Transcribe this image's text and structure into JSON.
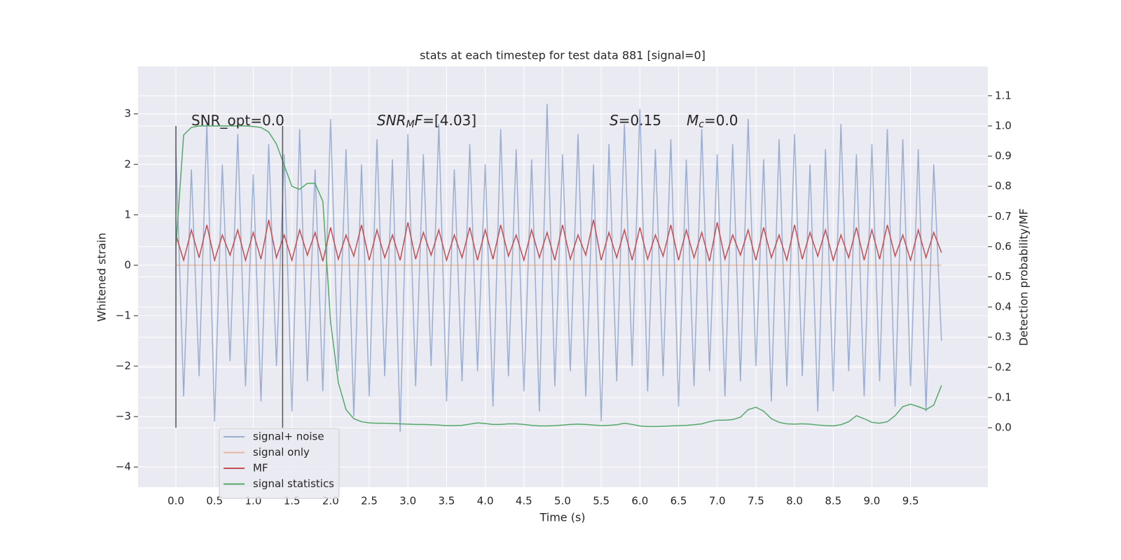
{
  "chart_data": {
    "type": "line",
    "title": "stats at each timestep for test data 881 [signal=0]",
    "xlabel": "Time (s)",
    "ylabel": "Whitened strain",
    "y2label": "Detection probability/MF",
    "grid": true,
    "legend_loc": "lower left",
    "xlim": [
      -0.49,
      10.5
    ],
    "ylim": [
      -4.4,
      3.94
    ],
    "y2lim": [
      -0.197,
      1.197
    ],
    "xticks": [
      {
        "value": 0,
        "label": "0.0"
      },
      {
        "value": 0.5,
        "label": "0.5"
      },
      {
        "value": 1,
        "label": "1.0"
      },
      {
        "value": 1.5,
        "label": "1.5"
      },
      {
        "value": 2,
        "label": "2.0"
      },
      {
        "value": 2.5,
        "label": "2.5"
      },
      {
        "value": 3,
        "label": "3.0"
      },
      {
        "value": 3.5,
        "label": "3.5"
      },
      {
        "value": 4,
        "label": "4.0"
      },
      {
        "value": 4.5,
        "label": "4.5"
      },
      {
        "value": 5,
        "label": "5.0"
      },
      {
        "value": 5.5,
        "label": "5.5"
      },
      {
        "value": 6,
        "label": "6.0"
      },
      {
        "value": 6.5,
        "label": "6.5"
      },
      {
        "value": 7,
        "label": "7.0"
      },
      {
        "value": 7.5,
        "label": "7.5"
      },
      {
        "value": 8,
        "label": "8.0"
      },
      {
        "value": 8.5,
        "label": "8.5"
      },
      {
        "value": 9,
        "label": "9.0"
      },
      {
        "value": 9.5,
        "label": "9.5"
      }
    ],
    "yticks": [
      {
        "value": -4,
        "label": "−4"
      },
      {
        "value": -3,
        "label": "−3"
      },
      {
        "value": -2,
        "label": "−2"
      },
      {
        "value": -1,
        "label": "−1"
      },
      0,
      1,
      2,
      3
    ],
    "y2ticks": [
      {
        "value": 0,
        "label": "0.0"
      },
      {
        "value": 0.1,
        "label": "0.1"
      },
      {
        "value": 0.2,
        "label": "0.2"
      },
      {
        "value": 0.3,
        "label": "0.3"
      },
      {
        "value": 0.4,
        "label": "0.4"
      },
      {
        "value": 0.5,
        "label": "0.5"
      },
      {
        "value": 0.6,
        "label": "0.6"
      },
      {
        "value": 0.7,
        "label": "0.7"
      },
      {
        "value": 0.8,
        "label": "0.8"
      },
      {
        "value": 0.9,
        "label": "0.9"
      },
      {
        "value": 1,
        "label": "1.0"
      },
      {
        "value": 1.1,
        "label": "1.1"
      }
    ],
    "annotations": [
      [
        {
          "t": "SNR_opt=0.0"
        }
      ],
      [
        {
          "t": "SNR",
          "i": true
        },
        {
          "t": "M",
          "i": true,
          "sub": true
        },
        {
          "t": "F",
          "i": true
        },
        {
          "t": "=[4.03]"
        }
      ],
      [
        {
          "t": "S",
          "i": true
        },
        {
          "t": "=0.15"
        }
      ],
      [
        {
          "t": "M",
          "i": true
        },
        {
          "t": "c",
          "i": true,
          "sub": true
        },
        {
          "t": "=0.0"
        }
      ]
    ],
    "vlines": [
      {
        "x": 0,
        "y2": [
          0,
          1
        ]
      },
      {
        "x": 1.38,
        "y2": [
          0,
          1
        ]
      }
    ],
    "x": [
      0.0,
      0.1,
      0.2,
      0.3,
      0.4,
      0.5,
      0.6,
      0.7,
      0.8,
      0.9,
      1.0,
      1.1,
      1.2,
      1.3,
      1.4,
      1.5,
      1.6,
      1.7,
      1.8,
      1.9,
      2.0,
      2.1,
      2.2,
      2.3,
      2.4,
      2.5,
      2.6,
      2.7,
      2.8,
      2.9,
      3.0,
      3.1,
      3.2,
      3.3,
      3.4,
      3.5,
      3.6,
      3.7,
      3.8,
      3.9,
      4.0,
      4.1,
      4.2,
      4.3,
      4.4,
      4.5,
      4.6,
      4.7,
      4.8,
      4.9,
      5.0,
      5.1,
      5.2,
      5.3,
      5.4,
      5.5,
      5.6,
      5.7,
      5.8,
      5.9,
      6.0,
      6.1,
      6.2,
      6.3,
      6.4,
      6.5,
      6.6,
      6.7,
      6.8,
      6.9,
      7.0,
      7.1,
      7.2,
      7.3,
      7.4,
      7.5,
      7.6,
      7.7,
      7.8,
      7.9,
      8.0,
      8.1,
      8.2,
      8.3,
      8.4,
      8.5,
      8.6,
      8.7,
      8.8,
      8.9,
      9.0,
      9.1,
      9.2,
      9.3,
      9.4,
      9.5,
      9.6,
      9.7,
      9.8,
      9.9
    ],
    "series": [
      {
        "name": "signal+ noise",
        "color": "#4c72b0",
        "alpha": 0.5,
        "values": [
          2.3,
          -2.6,
          1.9,
          -2.2,
          2.8,
          -3.1,
          2.0,
          -1.9,
          2.6,
          -2.4,
          1.8,
          -2.7,
          2.4,
          -2.0,
          2.2,
          -2.9,
          2.7,
          -2.3,
          1.9,
          -2.5,
          2.9,
          -2.1,
          2.3,
          -3.0,
          2.0,
          -2.6,
          2.5,
          -2.2,
          2.1,
          -3.3,
          2.6,
          -2.4,
          2.2,
          -2.0,
          2.8,
          -2.7,
          1.9,
          -2.3,
          2.4,
          -2.1,
          2.0,
          -2.8,
          2.7,
          -2.2,
          2.3,
          -2.5,
          2.1,
          -2.9,
          3.2,
          -2.4,
          2.2,
          -2.1,
          2.6,
          -2.6,
          2.0,
          -3.1,
          2.4,
          -2.3,
          2.8,
          -2.0,
          3.1,
          -2.5,
          2.3,
          -2.2,
          2.5,
          -2.8,
          2.1,
          -2.4,
          2.7,
          -2.1,
          2.2,
          -2.6,
          2.4,
          -2.3,
          2.9,
          -2.0,
          2.1,
          -2.7,
          2.5,
          -2.4,
          2.6,
          -2.2,
          2.0,
          -2.9,
          2.3,
          -2.5,
          2.8,
          -2.1,
          2.2,
          -2.6,
          2.4,
          -2.3,
          2.7,
          -2.8,
          2.5,
          -2.4,
          2.3,
          -2.9,
          2.0,
          -1.5
        ]
      },
      {
        "name": "signal only",
        "color": "#dd8452",
        "alpha": 0.5,
        "values": [
          0,
          0,
          0,
          0,
          0,
          0,
          0,
          0,
          0,
          0,
          0,
          0,
          0,
          0,
          0,
          0,
          0,
          0,
          0,
          0,
          0,
          0,
          0,
          0,
          0,
          0,
          0,
          0,
          0,
          0,
          0,
          0,
          0,
          0,
          0,
          0,
          0,
          0,
          0,
          0,
          0,
          0,
          0,
          0,
          0,
          0,
          0,
          0,
          0,
          0,
          0,
          0,
          0,
          0,
          0,
          0,
          0,
          0,
          0,
          0,
          0,
          0,
          0,
          0,
          0,
          0,
          0,
          0,
          0,
          0,
          0,
          0,
          0,
          0,
          0,
          0,
          0,
          0,
          0,
          0,
          0,
          0,
          0,
          0,
          0,
          0,
          0,
          0,
          0,
          0,
          0,
          0,
          0,
          0,
          0,
          0,
          0,
          0,
          0,
          0
        ]
      },
      {
        "name": "MF",
        "color": "#c44e52",
        "alpha": 1,
        "values": [
          0.6,
          0.1,
          0.7,
          0.15,
          0.8,
          0.1,
          0.6,
          0.2,
          0.7,
          0.1,
          0.65,
          0.12,
          0.9,
          0.15,
          0.6,
          0.1,
          0.7,
          0.2,
          0.65,
          0.08,
          0.75,
          0.12,
          0.6,
          0.18,
          0.8,
          0.1,
          0.7,
          0.15,
          0.6,
          0.1,
          0.85,
          0.12,
          0.65,
          0.2,
          0.7,
          0.1,
          0.6,
          0.15,
          0.75,
          0.1,
          0.7,
          0.12,
          0.8,
          0.18,
          0.6,
          0.1,
          0.7,
          0.15,
          0.65,
          0.1,
          0.8,
          0.12,
          0.6,
          0.2,
          0.9,
          0.1,
          0.65,
          0.15,
          0.7,
          0.1,
          0.75,
          0.12,
          0.6,
          0.18,
          0.8,
          0.1,
          0.7,
          0.15,
          0.65,
          0.08,
          0.85,
          0.12,
          0.6,
          0.2,
          0.7,
          0.1,
          0.75,
          0.15,
          0.6,
          0.1,
          0.8,
          0.12,
          0.65,
          0.18,
          0.7,
          0.1,
          0.6,
          0.15,
          0.75,
          0.1,
          0.7,
          0.12,
          0.8,
          0.18,
          0.6,
          0.1,
          0.7,
          0.15,
          0.65,
          0.25
        ]
      },
      {
        "name": "signal statistics",
        "color": "#55a868",
        "alpha": 1,
        "axis": "y2",
        "values": [
          0.6,
          0.97,
          0.995,
          1.0,
          1.0,
          1.0,
          1.0,
          1.0,
          1.0,
          1.0,
          0.998,
          0.995,
          0.98,
          0.94,
          0.87,
          0.8,
          0.79,
          0.81,
          0.81,
          0.75,
          0.35,
          0.15,
          0.06,
          0.03,
          0.02,
          0.016,
          0.015,
          0.015,
          0.014,
          0.013,
          0.012,
          0.011,
          0.011,
          0.01,
          0.009,
          0.007,
          0.007,
          0.008,
          0.012,
          0.016,
          0.014,
          0.011,
          0.011,
          0.013,
          0.013,
          0.011,
          0.008,
          0.006,
          0.006,
          0.007,
          0.009,
          0.011,
          0.012,
          0.011,
          0.009,
          0.007,
          0.008,
          0.01,
          0.015,
          0.011,
          0.006,
          0.004,
          0.004,
          0.005,
          0.006,
          0.007,
          0.008,
          0.01,
          0.013,
          0.02,
          0.025,
          0.025,
          0.027,
          0.035,
          0.06,
          0.068,
          0.055,
          0.03,
          0.018,
          0.013,
          0.012,
          0.013,
          0.012,
          0.009,
          0.007,
          0.006,
          0.01,
          0.02,
          0.04,
          0.03,
          0.018,
          0.015,
          0.02,
          0.04,
          0.07,
          0.078,
          0.07,
          0.06,
          0.075,
          0.14
        ]
      }
    ]
  }
}
